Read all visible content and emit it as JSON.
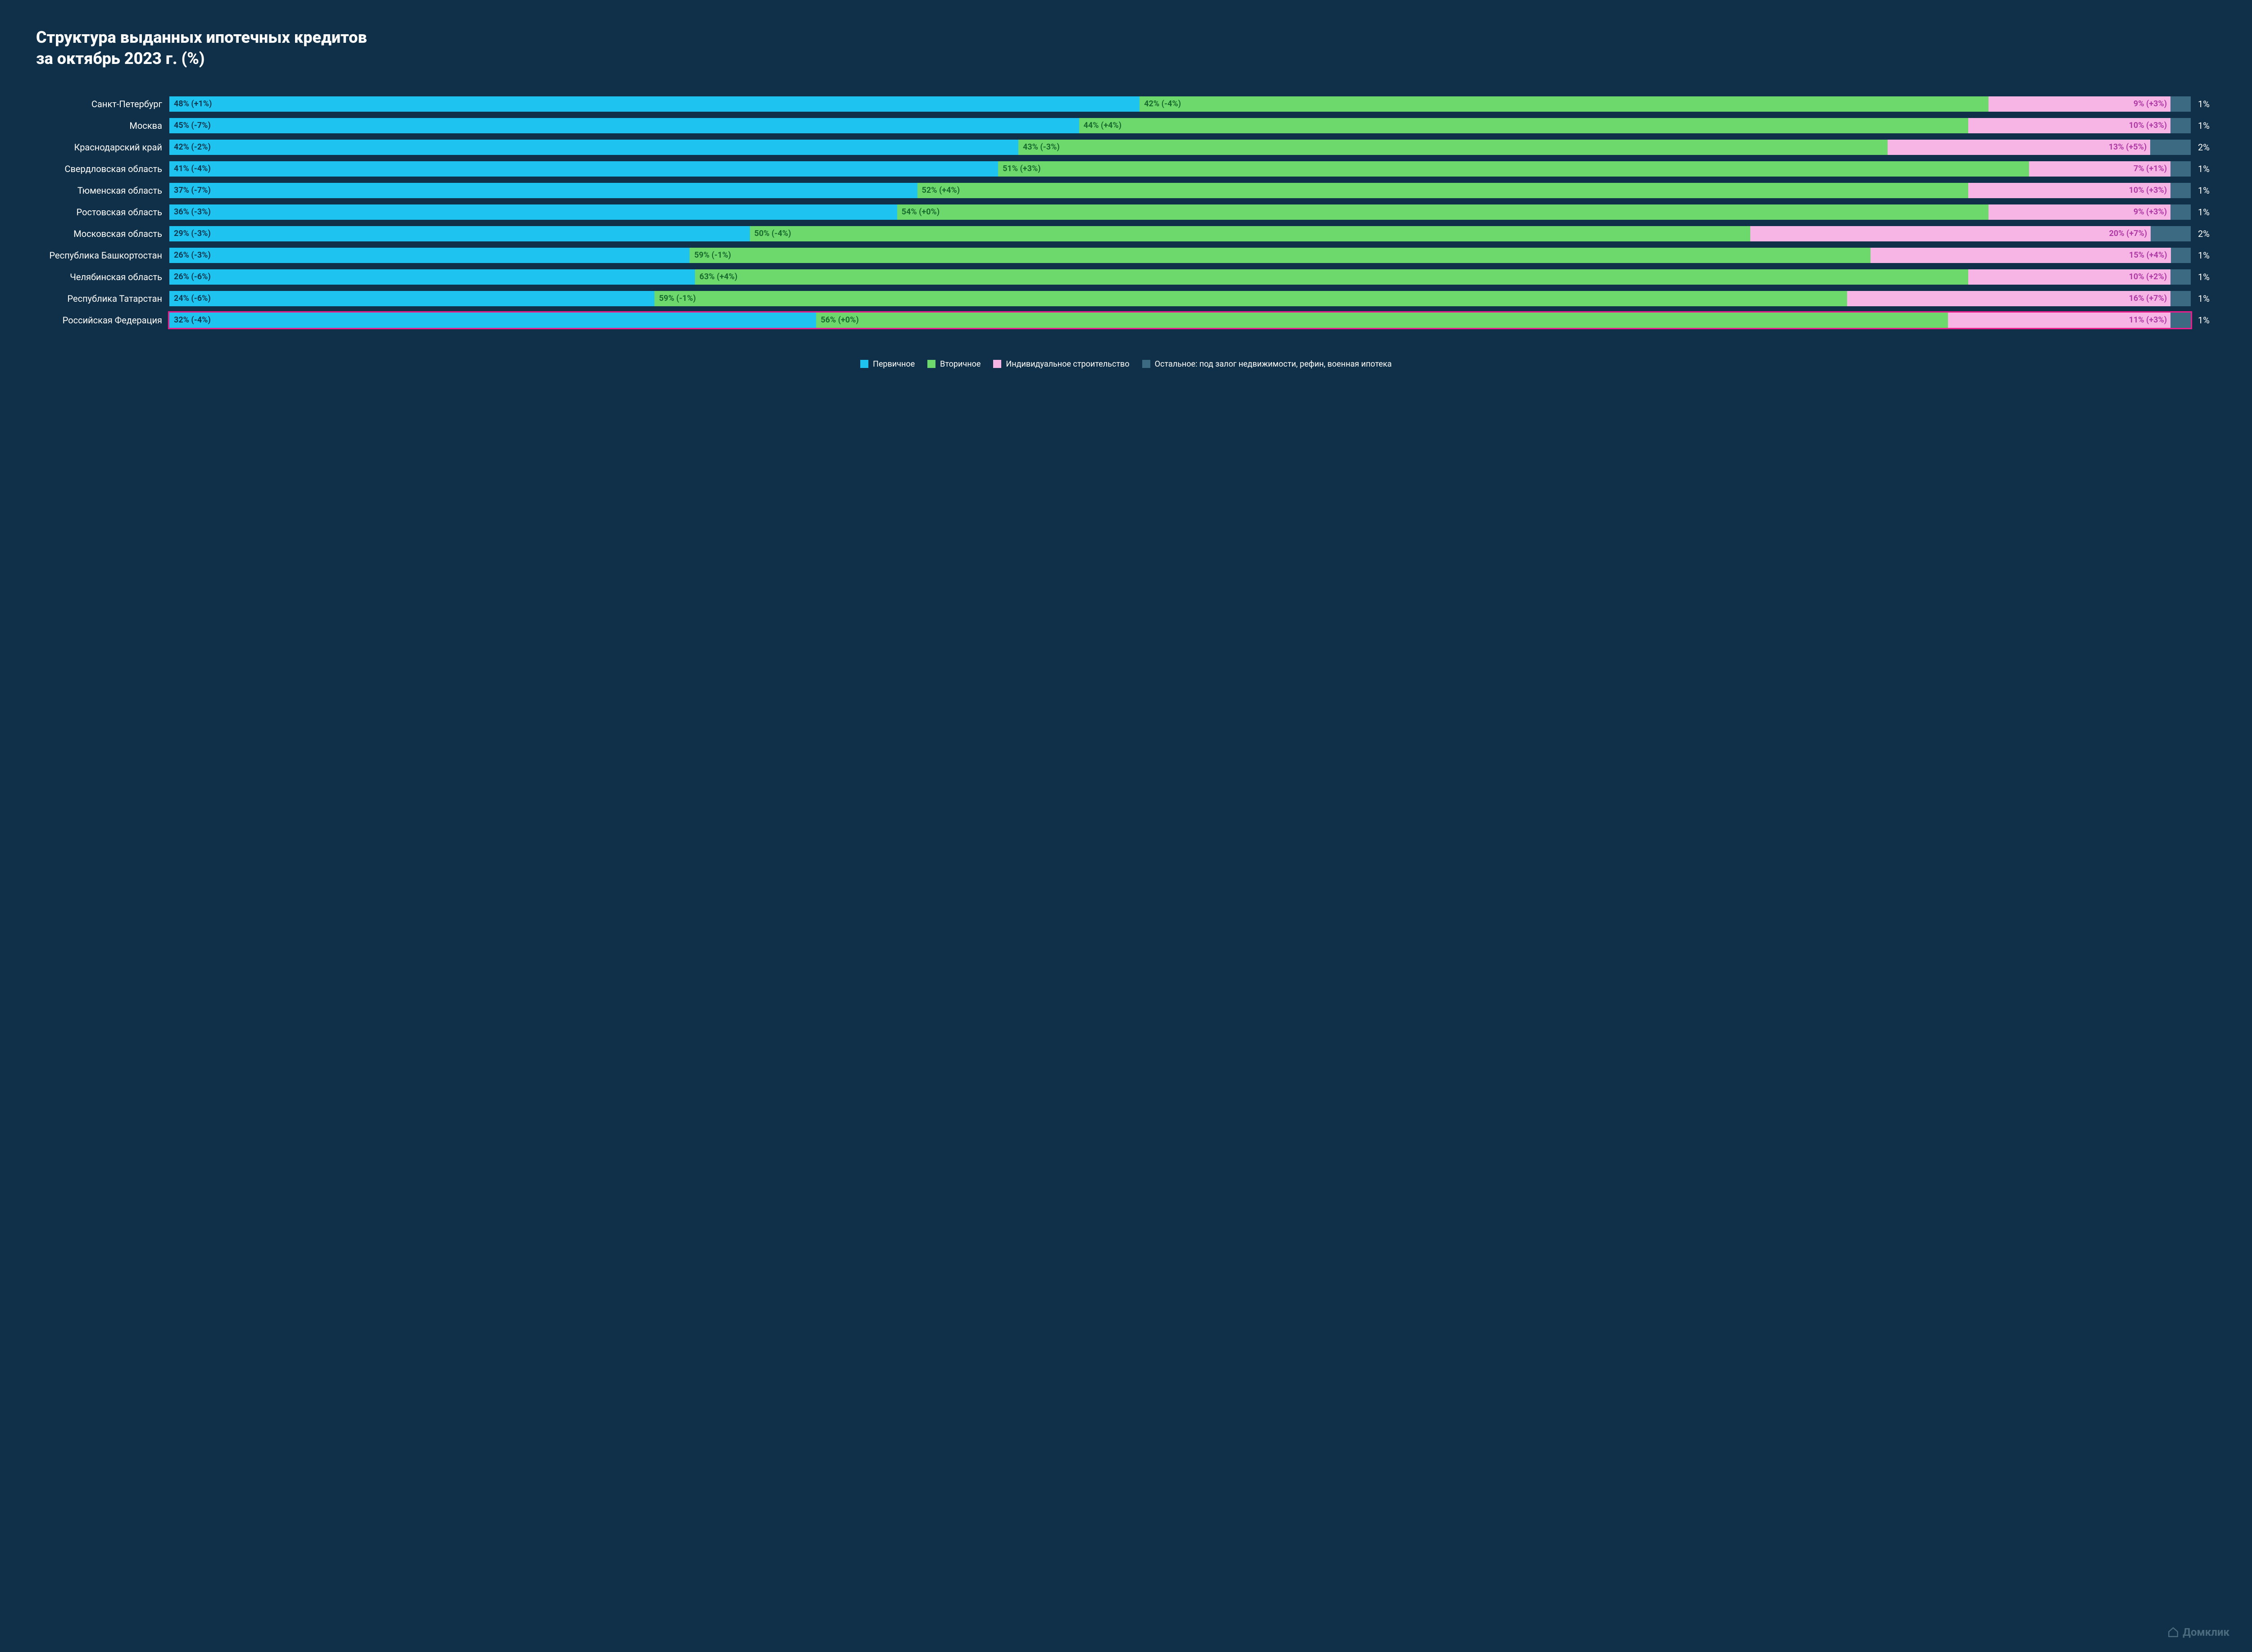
{
  "title_line1": "Структура выданных ипотечных кредитов",
  "title_line2": "за октябрь 2023 г. (%)",
  "colors": {
    "bg": "#0f3048",
    "primary": "#1fc3ef",
    "secondary": "#6dd96d",
    "individual": "#f6b5e4",
    "other": "#3b6a82",
    "highlight_border": "#e91e8c",
    "seg_text_primary": "#0d3a52",
    "seg_text_secondary": "#1a6b2e",
    "seg_text_individual": "#b03aa5",
    "trail_text": "#ffffff"
  },
  "legend": [
    {
      "label": "Первичное",
      "color_key": "primary"
    },
    {
      "label": "Вторичное",
      "color_key": "secondary"
    },
    {
      "label": "Индивидуальное строительство",
      "color_key": "individual"
    },
    {
      "label": "Остальное: под залог недвижимости, рефин, военная ипотека",
      "color_key": "other"
    }
  ],
  "rows": [
    {
      "label": "Санкт-Петербург",
      "highlight": false,
      "segs": [
        {
          "k": "primary",
          "v": 48,
          "t": "48% (+1%)"
        },
        {
          "k": "secondary",
          "v": 42,
          "t": "42% (-4%)"
        },
        {
          "k": "individual",
          "v": 9,
          "t": "9% (+3%)",
          "align": "right"
        },
        {
          "k": "other",
          "v": 1,
          "t": ""
        }
      ],
      "trail": "1%"
    },
    {
      "label": "Москва",
      "highlight": false,
      "segs": [
        {
          "k": "primary",
          "v": 45,
          "t": "45% (-7%)"
        },
        {
          "k": "secondary",
          "v": 44,
          "t": "44% (+4%)"
        },
        {
          "k": "individual",
          "v": 10,
          "t": "10% (+3%)",
          "align": "right"
        },
        {
          "k": "other",
          "v": 1,
          "t": ""
        }
      ],
      "trail": "1%"
    },
    {
      "label": "Краснодарский край",
      "highlight": false,
      "segs": [
        {
          "k": "primary",
          "v": 42,
          "t": "42% (-2%)"
        },
        {
          "k": "secondary",
          "v": 43,
          "t": "43% (-3%)"
        },
        {
          "k": "individual",
          "v": 13,
          "t": "13% (+5%)",
          "align": "right"
        },
        {
          "k": "other",
          "v": 2,
          "t": ""
        }
      ],
      "trail": "2%"
    },
    {
      "label": "Свердловская область",
      "highlight": false,
      "segs": [
        {
          "k": "primary",
          "v": 41,
          "t": "41% (-4%)"
        },
        {
          "k": "secondary",
          "v": 51,
          "t": "51% (+3%)"
        },
        {
          "k": "individual",
          "v": 7,
          "t": "7% (+1%)",
          "align": "right"
        },
        {
          "k": "other",
          "v": 1,
          "t": ""
        }
      ],
      "trail": "1%"
    },
    {
      "label": "Тюменская область",
      "highlight": false,
      "segs": [
        {
          "k": "primary",
          "v": 37,
          "t": "37% (-7%)"
        },
        {
          "k": "secondary",
          "v": 52,
          "t": "52% (+4%)"
        },
        {
          "k": "individual",
          "v": 10,
          "t": "10% (+3%)",
          "align": "right"
        },
        {
          "k": "other",
          "v": 1,
          "t": ""
        }
      ],
      "trail": "1%"
    },
    {
      "label": "Ростовская область",
      "highlight": false,
      "segs": [
        {
          "k": "primary",
          "v": 36,
          "t": "36% (-3%)"
        },
        {
          "k": "secondary",
          "v": 54,
          "t": "54% (+0%)"
        },
        {
          "k": "individual",
          "v": 9,
          "t": "9% (+3%)",
          "align": "right"
        },
        {
          "k": "other",
          "v": 1,
          "t": ""
        }
      ],
      "trail": "1%"
    },
    {
      "label": "Московская область",
      "highlight": false,
      "segs": [
        {
          "k": "primary",
          "v": 29,
          "t": "29% (-3%)"
        },
        {
          "k": "secondary",
          "v": 50,
          "t": "50% (-4%)"
        },
        {
          "k": "individual",
          "v": 20,
          "t": "20% (+7%)",
          "align": "right"
        },
        {
          "k": "other",
          "v": 2,
          "t": ""
        }
      ],
      "trail": "2%"
    },
    {
      "label": "Республика Башкортостан",
      "highlight": false,
      "segs": [
        {
          "k": "primary",
          "v": 26,
          "t": "26% (-3%)"
        },
        {
          "k": "secondary",
          "v": 59,
          "t": "59% (-1%)"
        },
        {
          "k": "individual",
          "v": 15,
          "t": "15% (+4%)",
          "align": "right"
        },
        {
          "k": "other",
          "v": 1,
          "t": ""
        }
      ],
      "trail": "1%"
    },
    {
      "label": "Челябинская область",
      "highlight": false,
      "segs": [
        {
          "k": "primary",
          "v": 26,
          "t": "26% (-6%)"
        },
        {
          "k": "secondary",
          "v": 63,
          "t": "63% (+4%)"
        },
        {
          "k": "individual",
          "v": 10,
          "t": "10% (+2%)",
          "align": "right"
        },
        {
          "k": "other",
          "v": 1,
          "t": ""
        }
      ],
      "trail": "1%"
    },
    {
      "label": "Республика Татарстан",
      "highlight": false,
      "segs": [
        {
          "k": "primary",
          "v": 24,
          "t": "24% (-6%)"
        },
        {
          "k": "secondary",
          "v": 59,
          "t": "59% (-1%)"
        },
        {
          "k": "individual",
          "v": 16,
          "t": "16% (+7%)",
          "align": "right"
        },
        {
          "k": "other",
          "v": 1,
          "t": ""
        }
      ],
      "trail": "1%"
    },
    {
      "label": "Российская Федерация",
      "highlight": true,
      "segs": [
        {
          "k": "primary",
          "v": 32,
          "t": "32% (-4%)"
        },
        {
          "k": "secondary",
          "v": 56,
          "t": "56% (+0%)"
        },
        {
          "k": "individual",
          "v": 11,
          "t": "11% (+3%)",
          "align": "right"
        },
        {
          "k": "other",
          "v": 1,
          "t": ""
        }
      ],
      "trail": "1%"
    }
  ],
  "logo_text": "Домклик"
}
